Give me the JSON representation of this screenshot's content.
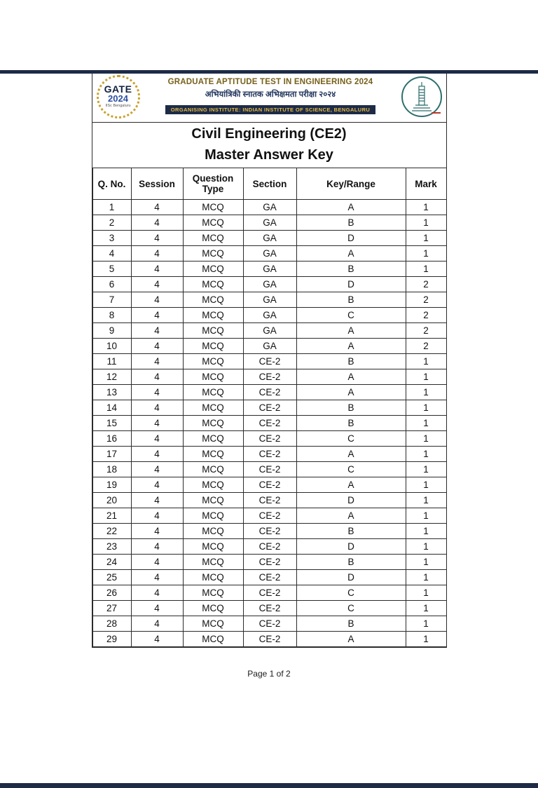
{
  "header": {
    "gate_logo": {
      "line1": "GATE",
      "line2": "2024",
      "line3": "IISc Bengaluru"
    },
    "title_line1": "GRADUATE APTITUDE TEST IN ENGINEERING 2024",
    "title_line2": "अभियांत्रिकी स्नातक अभिक्षमता परीक्षा २०२४",
    "title_line3": "ORGANISING INSTITUTE: INDIAN INSTITUTE OF SCIENCE, BENGALURU"
  },
  "title": {
    "line1": "Civil Engineering (CE2)",
    "line2": "Master Answer Key"
  },
  "table": {
    "columns": [
      "Q. No.",
      "Session",
      "Question Type",
      "Section",
      "Key/Range",
      "Mark"
    ],
    "rows": [
      [
        "1",
        "4",
        "MCQ",
        "GA",
        "A",
        "1"
      ],
      [
        "2",
        "4",
        "MCQ",
        "GA",
        "B",
        "1"
      ],
      [
        "3",
        "4",
        "MCQ",
        "GA",
        "D",
        "1"
      ],
      [
        "4",
        "4",
        "MCQ",
        "GA",
        "A",
        "1"
      ],
      [
        "5",
        "4",
        "MCQ",
        "GA",
        "B",
        "1"
      ],
      [
        "6",
        "4",
        "MCQ",
        "GA",
        "D",
        "2"
      ],
      [
        "7",
        "4",
        "MCQ",
        "GA",
        "B",
        "2"
      ],
      [
        "8",
        "4",
        "MCQ",
        "GA",
        "C",
        "2"
      ],
      [
        "9",
        "4",
        "MCQ",
        "GA",
        "A",
        "2"
      ],
      [
        "10",
        "4",
        "MCQ",
        "GA",
        "A",
        "2"
      ],
      [
        "11",
        "4",
        "MCQ",
        "CE-2",
        "B",
        "1"
      ],
      [
        "12",
        "4",
        "MCQ",
        "CE-2",
        "A",
        "1"
      ],
      [
        "13",
        "4",
        "MCQ",
        "CE-2",
        "A",
        "1"
      ],
      [
        "14",
        "4",
        "MCQ",
        "CE-2",
        "B",
        "1"
      ],
      [
        "15",
        "4",
        "MCQ",
        "CE-2",
        "B",
        "1"
      ],
      [
        "16",
        "4",
        "MCQ",
        "CE-2",
        "C",
        "1"
      ],
      [
        "17",
        "4",
        "MCQ",
        "CE-2",
        "A",
        "1"
      ],
      [
        "18",
        "4",
        "MCQ",
        "CE-2",
        "C",
        "1"
      ],
      [
        "19",
        "4",
        "MCQ",
        "CE-2",
        "A",
        "1"
      ],
      [
        "20",
        "4",
        "MCQ",
        "CE-2",
        "D",
        "1"
      ],
      [
        "21",
        "4",
        "MCQ",
        "CE-2",
        "A",
        "1"
      ],
      [
        "22",
        "4",
        "MCQ",
        "CE-2",
        "B",
        "1"
      ],
      [
        "23",
        "4",
        "MCQ",
        "CE-2",
        "D",
        "1"
      ],
      [
        "24",
        "4",
        "MCQ",
        "CE-2",
        "B",
        "1"
      ],
      [
        "25",
        "4",
        "MCQ",
        "CE-2",
        "D",
        "1"
      ],
      [
        "26",
        "4",
        "MCQ",
        "CE-2",
        "C",
        "1"
      ],
      [
        "27",
        "4",
        "MCQ",
        "CE-2",
        "C",
        "1"
      ],
      [
        "28",
        "4",
        "MCQ",
        "CE-2",
        "B",
        "1"
      ],
      [
        "29",
        "4",
        "MCQ",
        "CE-2",
        "A",
        "1"
      ]
    ]
  },
  "footer": {
    "page_indicator": "Page 1 of 2"
  },
  "colors": {
    "navy": "#1d2b47",
    "gold_dots": "#c9a22e",
    "header_gold_text": "#e7bb43",
    "header_brown_text": "#77601a",
    "iisc_teal": "#2f6e6e"
  }
}
